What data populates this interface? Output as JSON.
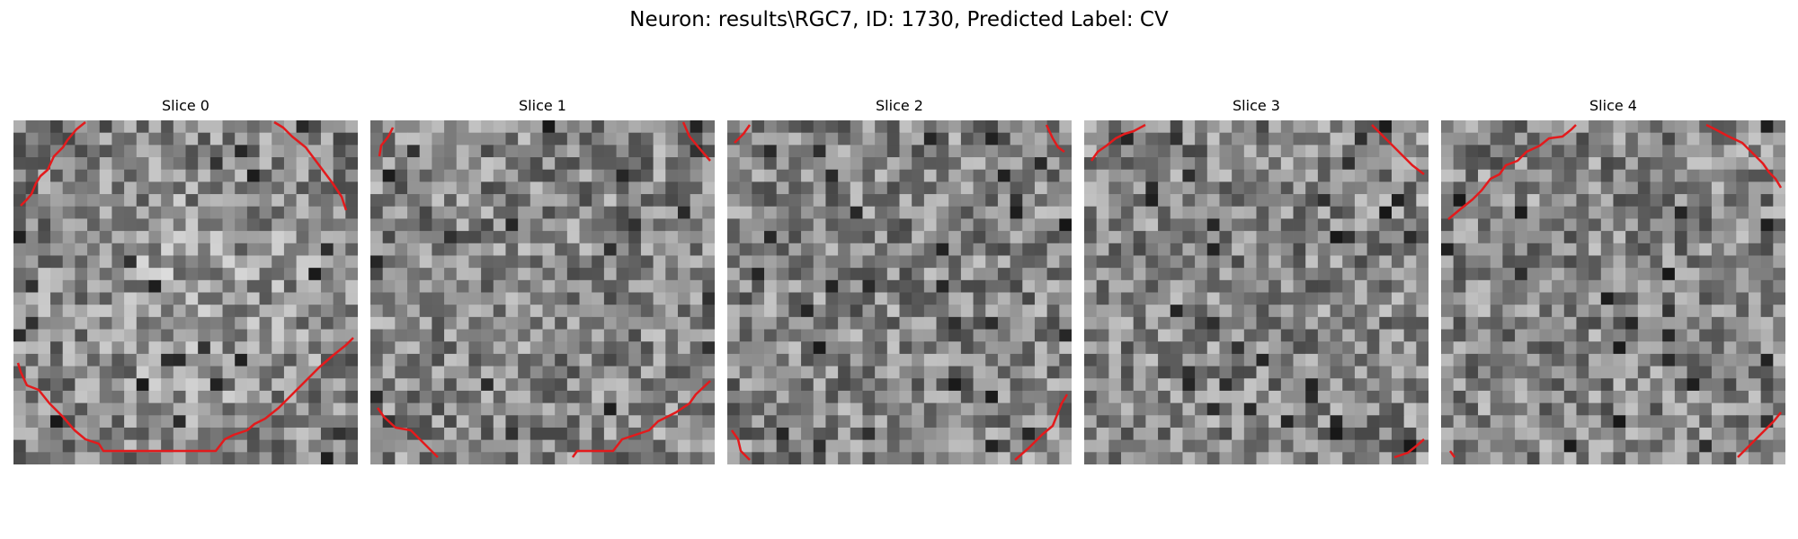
{
  "figure": {
    "title": "Neuron: results\\RGC7, ID: 1730, Predicted Label: CV"
  },
  "panels": [
    {
      "title": "Slice 0"
    },
    {
      "title": "Slice 1"
    },
    {
      "title": "Slice 2"
    },
    {
      "title": "Slice 3"
    },
    {
      "title": "Slice 4"
    }
  ],
  "image": {
    "grid_cells": 28,
    "colormap": "grayscale",
    "contour_color": "#e31a1c"
  }
}
